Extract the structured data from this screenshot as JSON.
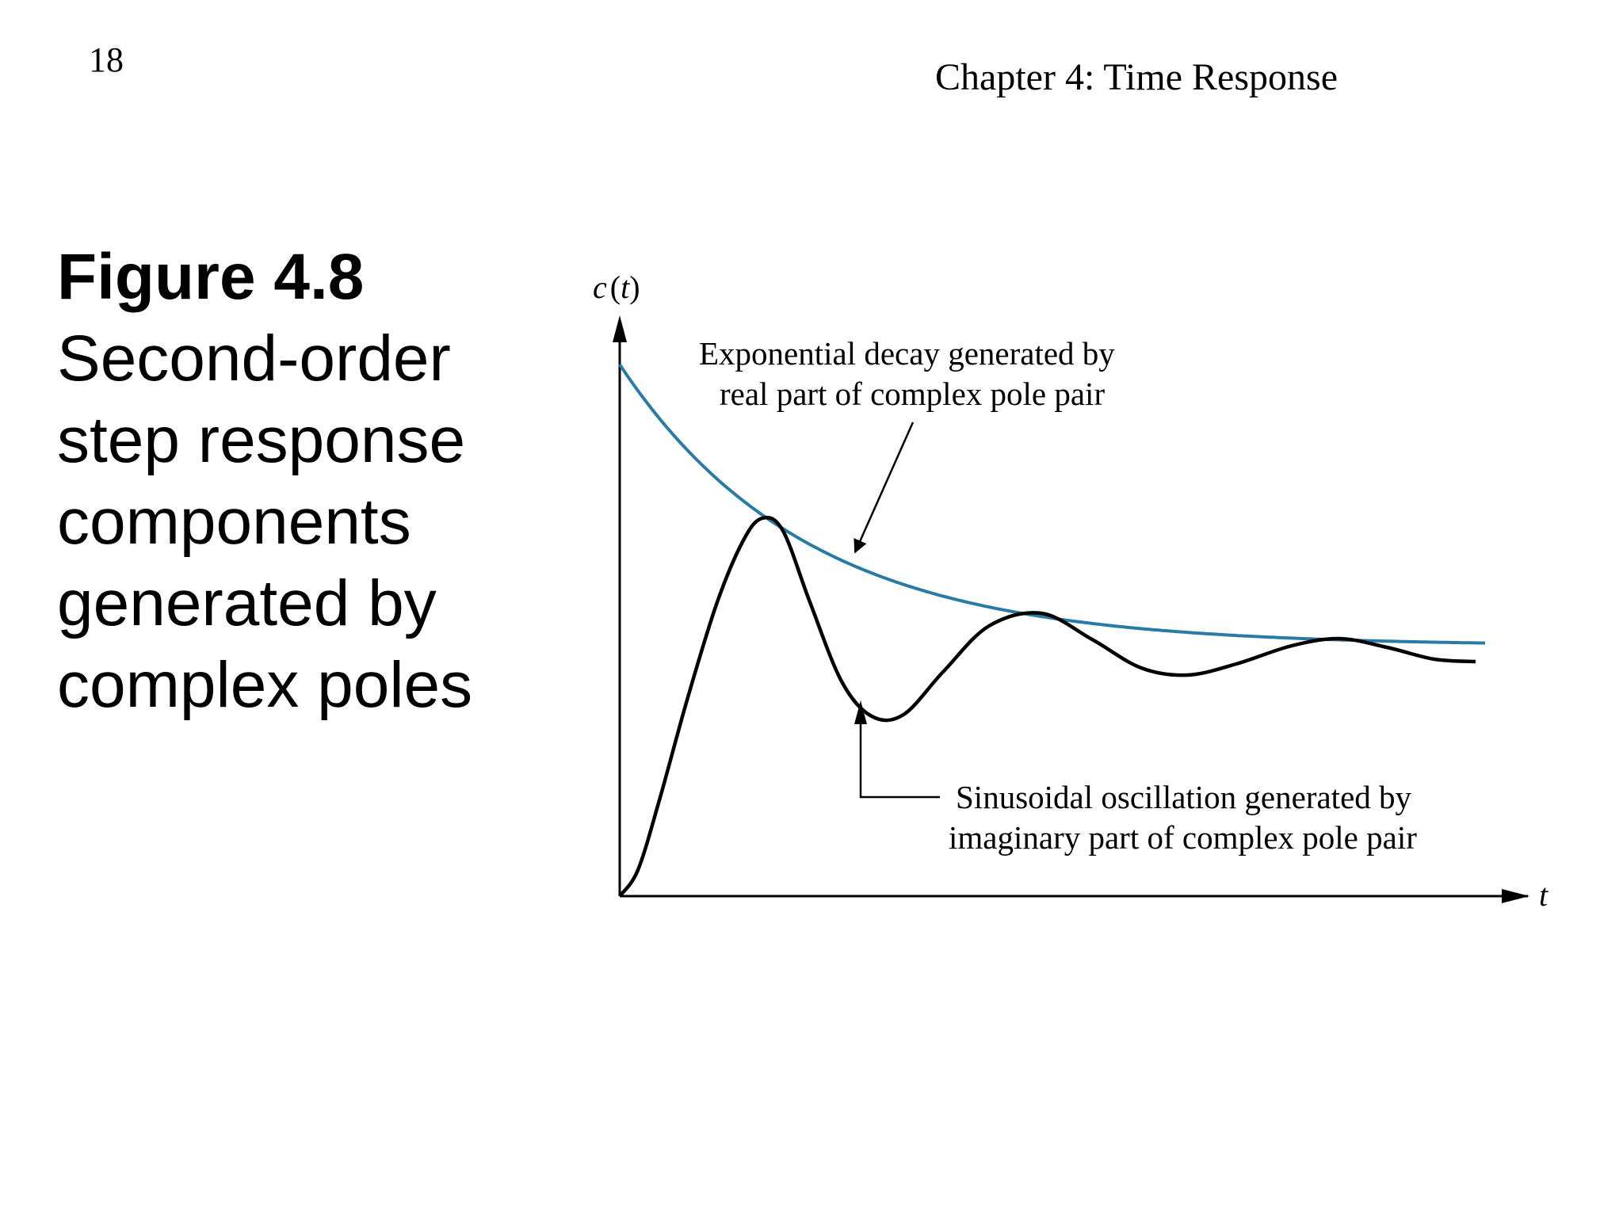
{
  "header": {
    "page_number": "18",
    "chapter_title": "Chapter 4: Time Response"
  },
  "caption": {
    "title": "Figure 4.8",
    "lines": [
      "Second-order",
      "step response",
      "components",
      "generated by",
      "complex poles"
    ]
  },
  "figure": {
    "y_axis_label_main": "c",
    "y_axis_label_open": "(",
    "y_axis_label_var": "t",
    "y_axis_label_close": ")",
    "x_axis_label": "t",
    "annotation_top": {
      "line1": "Exponential decay generated by",
      "line2": "real part of complex pole pair"
    },
    "annotation_bottom": {
      "line1": "Sinusoidal oscillation generated by",
      "line2": "imaginary part of complex pole pair"
    },
    "colors": {
      "envelope": "#2a7aa6",
      "response": "#000000"
    }
  }
}
